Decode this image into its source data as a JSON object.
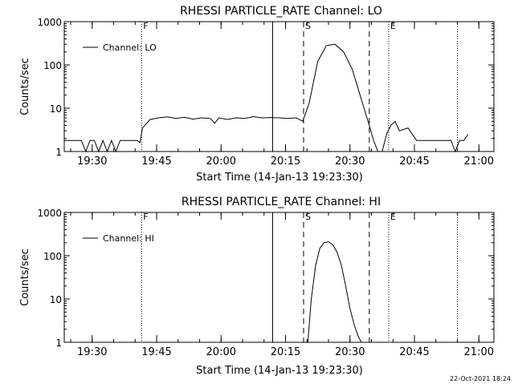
{
  "footer": {
    "timestamp": "22-Oct-2021 18:24"
  },
  "chart_data": [
    {
      "type": "line",
      "title": "RHESSI PARTICLE_RATE Channel: LO",
      "xlabel": "Start Time (14-Jan-13 19:23:30)",
      "ylabel": "Counts/sec",
      "y_scale": "log",
      "ylim": [
        1,
        1000
      ],
      "y_ticks": [
        {
          "value": 1,
          "label": "1"
        },
        {
          "value": 10,
          "label": "10"
        },
        {
          "value": 100,
          "label": "100"
        },
        {
          "value": 1000,
          "label": "1000"
        }
      ],
      "x_units": "minutes after 19:23:30",
      "xlim": [
        0,
        100
      ],
      "x_ticks": [
        {
          "value": 6.5,
          "label": "19:30"
        },
        {
          "value": 21.5,
          "label": "19:45"
        },
        {
          "value": 36.5,
          "label": "20:00"
        },
        {
          "value": 51.5,
          "label": "20:15"
        },
        {
          "value": 66.5,
          "label": "20:30"
        },
        {
          "value": 81.5,
          "label": "20:45"
        },
        {
          "value": 96.5,
          "label": "21:00"
        }
      ],
      "legend": {
        "label": "Channel: LO",
        "position": "top-left"
      },
      "markers": [
        {
          "label": "F",
          "x": 18,
          "style": "dotted"
        },
        {
          "label": "",
          "x": 48.5,
          "style": "solid"
        },
        {
          "label": "S",
          "x": 55.7,
          "style": "dashed"
        },
        {
          "label": "",
          "x": 71,
          "style": "dashed"
        },
        {
          "label": "E",
          "x": 75.5,
          "style": "dotted"
        },
        {
          "label": "",
          "x": 91.5,
          "style": "dotted"
        }
      ],
      "series": [
        {
          "name": "Channel: LO",
          "x": [
            0,
            1,
            4,
            5,
            6,
            7,
            8,
            9,
            10,
            11,
            12,
            13,
            14,
            15,
            16,
            17,
            17.6,
            18.2,
            19,
            20,
            22,
            24,
            26,
            28,
            30,
            32,
            34,
            35,
            36,
            38,
            40,
            42,
            44,
            46,
            48,
            50,
            52,
            54,
            55.5,
            57,
            59,
            61,
            63,
            65,
            67,
            69,
            71,
            72,
            73,
            74,
            75,
            76,
            77,
            78,
            80,
            82,
            84,
            86,
            88,
            89,
            90,
            91,
            92,
            93,
            94
          ],
          "y": [
            1.8,
            1.8,
            1.8,
            1,
            1.8,
            1.8,
            1,
            1.8,
            1,
            1.8,
            1,
            1.8,
            1.8,
            1.8,
            1.8,
            1.8,
            1.6,
            3.5,
            4.3,
            5.5,
            6,
            6.3,
            5.8,
            6.2,
            5.6,
            6,
            5.8,
            4.5,
            6,
            5.5,
            6,
            5.8,
            6.4,
            6,
            6.1,
            6,
            5.8,
            6,
            5,
            13,
            120,
            280,
            300,
            200,
            80,
            18,
            4,
            1.8,
            1,
            1,
            2.5,
            4,
            5,
            3,
            3.5,
            1.8,
            1.8,
            1.8,
            1.8,
            1.8,
            1.8,
            1,
            1.8,
            1.8,
            2.5
          ]
        }
      ]
    },
    {
      "type": "line",
      "title": "RHESSI PARTICLE_RATE Channel: HI",
      "xlabel": "Start Time (14-Jan-13 19:23:30)",
      "ylabel": "Counts/sec",
      "y_scale": "log",
      "ylim": [
        1,
        1000
      ],
      "y_ticks": [
        {
          "value": 1,
          "label": "1"
        },
        {
          "value": 10,
          "label": "10"
        },
        {
          "value": 100,
          "label": "100"
        },
        {
          "value": 1000,
          "label": "1000"
        }
      ],
      "x_units": "minutes after 19:23:30",
      "xlim": [
        0,
        100
      ],
      "x_ticks": [
        {
          "value": 6.5,
          "label": "19:30"
        },
        {
          "value": 21.5,
          "label": "19:45"
        },
        {
          "value": 36.5,
          "label": "20:00"
        },
        {
          "value": 51.5,
          "label": "20:15"
        },
        {
          "value": 66.5,
          "label": "20:30"
        },
        {
          "value": 81.5,
          "label": "20:45"
        },
        {
          "value": 96.5,
          "label": "21:00"
        }
      ],
      "legend": {
        "label": "Channel: HI",
        "position": "top-left"
      },
      "markers": [
        {
          "label": "F",
          "x": 18,
          "style": "dotted"
        },
        {
          "label": "",
          "x": 48.5,
          "style": "solid"
        },
        {
          "label": "S",
          "x": 55.7,
          "style": "dashed"
        },
        {
          "label": "",
          "x": 71,
          "style": "dashed"
        },
        {
          "label": "E",
          "x": 75.5,
          "style": "dotted"
        },
        {
          "label": "",
          "x": 91.5,
          "style": "dotted"
        }
      ],
      "series": [
        {
          "name": "Channel: HI",
          "x": [
            56.7,
            57.5,
            58.5,
            59.5,
            60.5,
            61.5,
            62.5,
            63.5,
            64.5,
            65.5,
            66.5,
            67.5,
            68.5,
            69.2
          ],
          "y": [
            1,
            10,
            60,
            150,
            200,
            210,
            180,
            120,
            60,
            20,
            6,
            2.5,
            1.3,
            1
          ]
        }
      ]
    }
  ]
}
